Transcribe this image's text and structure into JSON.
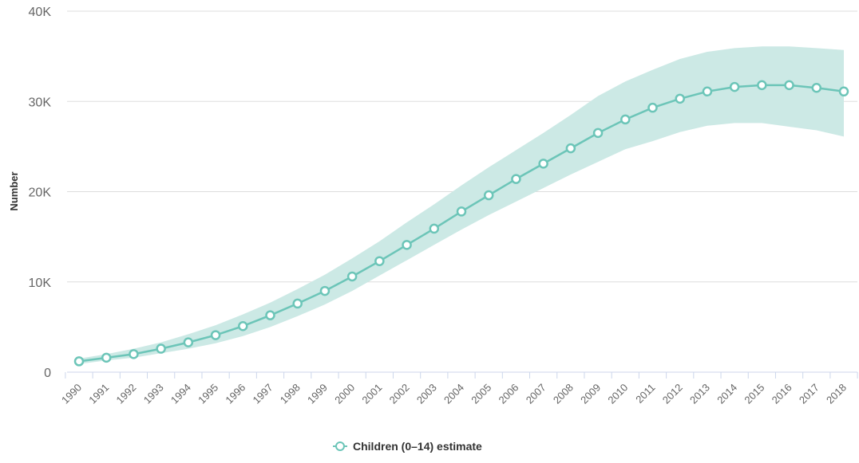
{
  "chart_data": {
    "type": "line",
    "title": "",
    "xlabel": "",
    "ylabel": "Number",
    "ylim": [
      0,
      40000
    ],
    "y_ticks": [
      {
        "value": 0,
        "label": "0"
      },
      {
        "value": 10000,
        "label": "10K"
      },
      {
        "value": 20000,
        "label": "20K"
      },
      {
        "value": 30000,
        "label": "30K"
      },
      {
        "value": 40000,
        "label": "40K"
      }
    ],
    "categories": [
      "1990",
      "1991",
      "1992",
      "1993",
      "1994",
      "1995",
      "1996",
      "1997",
      "1998",
      "1999",
      "2000",
      "2001",
      "2002",
      "2003",
      "2004",
      "2005",
      "2006",
      "2007",
      "2008",
      "2009",
      "2010",
      "2011",
      "2012",
      "2013",
      "2014",
      "2015",
      "2016",
      "2017",
      "2018"
    ],
    "series": [
      {
        "name": "Children (0–14) estimate",
        "color": "#6cc5b8",
        "values": [
          1200,
          1600,
          2000,
          2600,
          3300,
          4100,
          5100,
          6300,
          7600,
          9000,
          10600,
          12300,
          14100,
          15900,
          17800,
          19600,
          21400,
          23100,
          24800,
          26500,
          28000,
          29300,
          30300,
          31100,
          31600,
          31800,
          31800,
          31500,
          31100
        ],
        "upper": [
          1500,
          2000,
          2600,
          3300,
          4200,
          5200,
          6400,
          7700,
          9200,
          10800,
          12600,
          14500,
          16600,
          18600,
          20700,
          22700,
          24600,
          26500,
          28500,
          30600,
          32200,
          33500,
          34700,
          35500,
          35900,
          36100,
          36100,
          35900,
          35700
        ],
        "lower": [
          900,
          1300,
          1600,
          2100,
          2600,
          3200,
          4000,
          5000,
          6200,
          7500,
          9000,
          10700,
          12400,
          14100,
          15800,
          17400,
          18900,
          20400,
          21900,
          23300,
          24700,
          25600,
          26600,
          27300,
          27600,
          27600,
          27200,
          26800,
          26100
        ]
      }
    ],
    "band_color": "#cce9e5",
    "grid": true,
    "legend_position": "bottom-center"
  }
}
